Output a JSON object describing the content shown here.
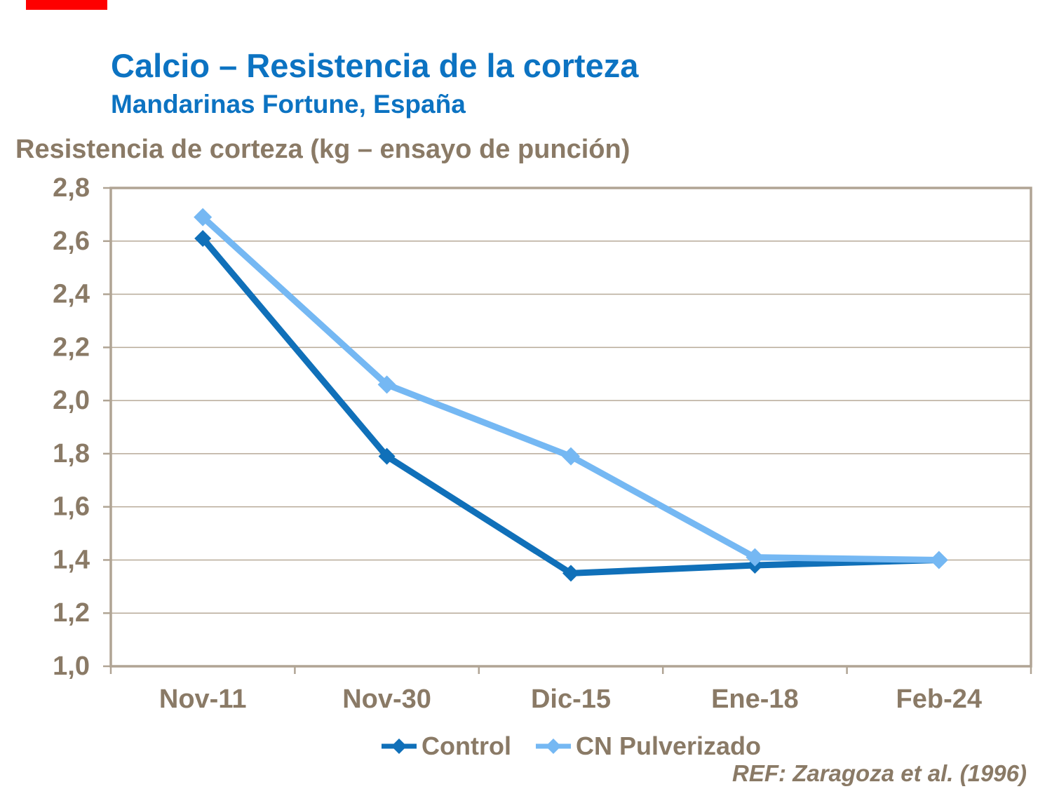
{
  "decor": {
    "red_bar_color": "#fe0000"
  },
  "chart_data": {
    "type": "line",
    "title": "Calcio – Resistencia de la corteza",
    "subtitle": "Mandarinas Fortune, España",
    "axis_title": "Resistencia de corteza (kg – ensayo de punción)",
    "categories": [
      "Nov-11",
      "Nov-30",
      "Dic-15",
      "Ene-18",
      "Feb-24"
    ],
    "series": [
      {
        "name": "Control",
        "color": "#1070b9",
        "marker": "diamond",
        "values": [
          2.61,
          1.79,
          1.35,
          1.38,
          1.4
        ]
      },
      {
        "name": "CN Pulverizado",
        "color": "#75b8f3",
        "marker": "diamond",
        "values": [
          2.69,
          2.06,
          1.79,
          1.41,
          1.4
        ]
      }
    ],
    "ylim": [
      1.0,
      2.8
    ],
    "ytick_step": 0.2,
    "ytick_labels": [
      "1,0",
      "1,2",
      "1,4",
      "1,6",
      "1,8",
      "2,0",
      "2,2",
      "2,4",
      "2,6",
      "2,8"
    ],
    "grid": true,
    "legend_position": "bottom-center",
    "reference": "REF: Zaragoza et al. (1996)",
    "colors": {
      "axis_text": "#8a7a66",
      "gridline": "#b7aa98",
      "border": "#b0a494",
      "title_blue": "#0c73c2"
    }
  }
}
